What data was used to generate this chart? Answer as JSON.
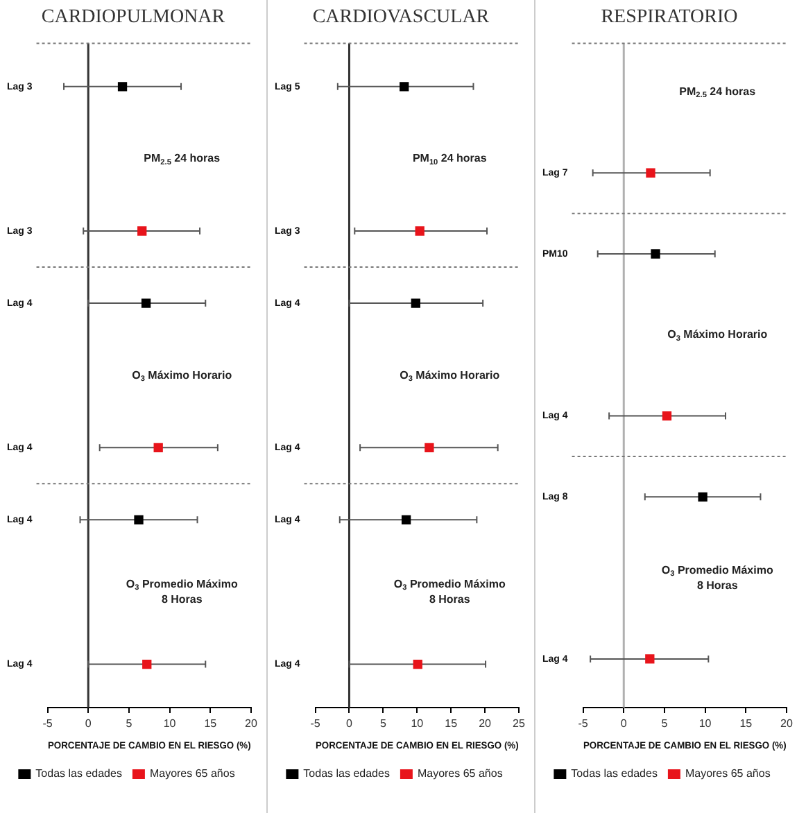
{
  "chart_data": [
    {
      "type": "scatter",
      "title": "CARDIOPULMONAR",
      "xlabel": "PORCENTAJE DE CAMBIO EN EL RIESGO (%)",
      "orientation": "horizontal",
      "marker": "square",
      "legend": "bottom",
      "categories": [
        "Lag 3",
        null,
        "Lag 3",
        "Lag 4",
        null,
        "Lag 4",
        "Lag 4",
        null,
        "Lag 4"
      ],
      "xlim": [
        -5,
        20
      ],
      "xticks": [
        -5,
        0,
        5,
        10,
        15,
        20
      ],
      "ref_lines": [
        {
          "axis": "x",
          "value": 0,
          "color": "#333333"
        }
      ],
      "annotations": [
        "PM$_{2.5}$ 24 horas",
        "O$_{3}$ Máximo Horario",
        "O$_{3}$ Promedio Máximo 8 Horas"
      ],
      "series": [
        {
          "name": "Todas las edades",
          "color": "#000000",
          "values": [
            4.2,
            null,
            null,
            7.1,
            null,
            null,
            6.2,
            null,
            null
          ],
          "errors": [
            [
              -3.0,
              11.4
            ],
            null,
            null,
            [
              0,
              14.4
            ],
            null,
            null,
            [
              -1.0,
              13.4
            ],
            null,
            null
          ]
        },
        {
          "name": "Mayores 65 años",
          "color": "#e8141b",
          "values": [
            null,
            null,
            6.6,
            null,
            null,
            8.6,
            null,
            null,
            7.2
          ],
          "errors": [
            null,
            null,
            [
              -0.6,
              13.7
            ],
            null,
            null,
            [
              1.4,
              15.9
            ],
            null,
            null,
            [
              0,
              14.4
            ]
          ]
        }
      ]
    },
    {
      "type": "scatter",
      "title": "CARDIOVASCULAR",
      "xlabel": "PORCENTAJE DE CAMBIO EN EL RIESGO (%)",
      "orientation": "horizontal",
      "marker": "square",
      "legend": "bottom",
      "categories": [
        "Lag 5",
        null,
        "Lag 3",
        "Lag 4",
        null,
        "Lag 4",
        "Lag 4",
        null,
        "Lag 4"
      ],
      "xlim": [
        -5,
        25
      ],
      "xticks": [
        -5,
        0,
        5,
        10,
        15,
        20,
        25
      ],
      "ref_lines": [
        {
          "axis": "x",
          "value": 0,
          "color": "#333333"
        }
      ],
      "annotations": [
        "PM$_{10}$ 24 horas",
        "O$_{3}$ Máximo Horario",
        "O$_{3}$ Promedio Máximo 8 Horas"
      ],
      "series": [
        {
          "name": "Todas las edades",
          "color": "#000000",
          "values": [
            8.1,
            null,
            null,
            9.8,
            null,
            null,
            8.4,
            null,
            null
          ],
          "errors": [
            [
              -1.7,
              18.3
            ],
            null,
            null,
            [
              0,
              19.7
            ],
            null,
            null,
            [
              -1.4,
              18.8
            ],
            null,
            null
          ]
        },
        {
          "name": "Mayores 65 años",
          "color": "#e8141b",
          "values": [
            null,
            null,
            10.4,
            null,
            null,
            11.8,
            null,
            null,
            10.1
          ],
          "errors": [
            null,
            null,
            [
              0.8,
              20.3
            ],
            null,
            null,
            [
              1.6,
              21.9
            ],
            null,
            null,
            [
              0,
              20.1
            ]
          ]
        }
      ]
    },
    {
      "type": "scatter",
      "title": "RESPIRATORIO",
      "xlabel": "PORCENTAJE DE CAMBIO EN EL RIESGO (%)",
      "orientation": "horizontal",
      "marker": "square",
      "legend": "bottom",
      "categories": [
        null,
        "Lag 7",
        "PM10",
        null,
        "Lag 4",
        "Lag 8",
        null,
        "Lag 4"
      ],
      "xlim": [
        -5,
        20
      ],
      "xticks": [
        -5,
        0,
        5,
        10,
        15,
        20
      ],
      "ref_lines": [
        {
          "axis": "x",
          "value": 0,
          "color": "#b0b0b0"
        }
      ],
      "annotations": [
        "PM$_{2.5}$ 24 horas",
        "O$_{3}$ Máximo Horario",
        "O$_{3}$ Promedio Máximo 8 Horas"
      ],
      "series": [
        {
          "name": "Todas las edades",
          "color": "#000000",
          "values": [
            null,
            null,
            3.9,
            null,
            null,
            9.7,
            null,
            null
          ],
          "errors": [
            null,
            null,
            [
              -3.2,
              11.2
            ],
            null,
            null,
            [
              2.6,
              16.8
            ],
            null,
            null
          ]
        },
        {
          "name": "Mayores 65 años",
          "color": "#e8141b",
          "values": [
            null,
            3.3,
            null,
            null,
            5.3,
            null,
            null,
            3.2
          ],
          "errors": [
            null,
            [
              -3.8,
              10.6
            ],
            null,
            null,
            [
              -1.8,
              12.5
            ],
            null,
            null,
            [
              -4.1,
              10.4
            ]
          ]
        }
      ]
    }
  ]
}
